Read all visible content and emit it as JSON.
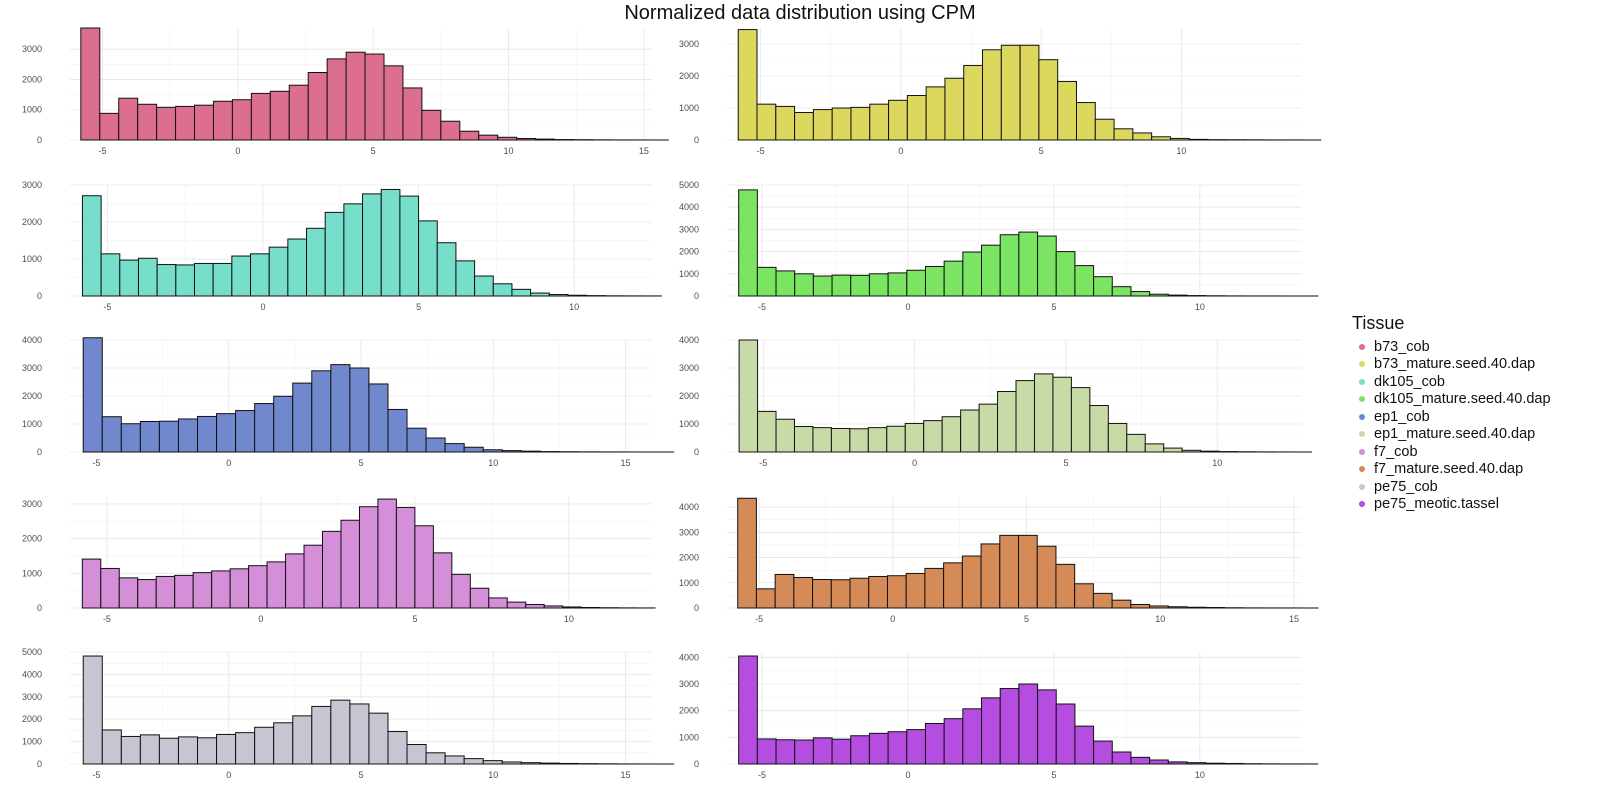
{
  "title": "Normalized data distribution using CPM",
  "legend": {
    "title": "Tissue",
    "position": "right",
    "items": [
      {
        "label": "b73_cob",
        "color": "#DC6E8E"
      },
      {
        "label": "b73_mature.seed.40.dap",
        "color": "#DCD85E"
      },
      {
        "label": "dk105_cob",
        "color": "#76DECB"
      },
      {
        "label": "dk105_mature.seed.40.dap",
        "color": "#7BE462"
      },
      {
        "label": "ep1_cob",
        "color": "#7188CF"
      },
      {
        "label": "ep1_mature.seed.40.dap",
        "color": "#C8DBA6"
      },
      {
        "label": "f7_cob",
        "color": "#D58ED8"
      },
      {
        "label": "f7_mature.seed.40.dap",
        "color": "#D48B57"
      },
      {
        "label": "pe75_cob",
        "color": "#C6C6D3"
      },
      {
        "label": "pe75_meotic.tassel",
        "color": "#B44DE0"
      }
    ]
  },
  "chart_data": [
    {
      "type": "histogram",
      "tissue": "b73_cob",
      "color": "#DC6E8E",
      "grid": true,
      "bin_start": -5.8,
      "bin_width": 0.7,
      "xlim": [
        -6.2,
        15.3
      ],
      "ylim": [
        0,
        3700
      ],
      "x_ticks": [
        -5,
        0,
        5,
        10,
        15
      ],
      "y_ticks": [
        0,
        1000,
        2000,
        3000
      ],
      "counts": [
        3700,
        880,
        1380,
        1180,
        1080,
        1110,
        1150,
        1280,
        1330,
        1540,
        1610,
        1810,
        2230,
        2680,
        2900,
        2840,
        2450,
        1720,
        980,
        620,
        290,
        160,
        90,
        50,
        30,
        15,
        10,
        5,
        3,
        2,
        1
      ]
    },
    {
      "type": "histogram",
      "tissue": "b73_mature.seed.40.dap",
      "color": "#DCD85E",
      "grid": true,
      "bin_start": -5.8,
      "bin_width": 0.67,
      "xlim": [
        -6.2,
        14.3
      ],
      "ylim": [
        0,
        3500
      ],
      "x_ticks": [
        -5,
        0,
        5,
        10
      ],
      "y_ticks": [
        0,
        1000,
        2000,
        3000
      ],
      "counts": [
        3450,
        1120,
        1050,
        860,
        950,
        1000,
        1020,
        1120,
        1240,
        1390,
        1660,
        1930,
        2330,
        2820,
        2960,
        2960,
        2510,
        1830,
        1170,
        650,
        350,
        220,
        100,
        50,
        20,
        10,
        8,
        5,
        3,
        2,
        1
      ]
    },
    {
      "type": "histogram",
      "tissue": "dk105_cob",
      "color": "#76DECB",
      "grid": true,
      "bin_start": -5.8,
      "bin_width": 0.6,
      "xlim": [
        -6.2,
        12.5
      ],
      "ylim": [
        0,
        3000
      ],
      "x_ticks": [
        -5,
        0,
        5,
        10
      ],
      "y_ticks": [
        0,
        1000,
        2000,
        3000
      ],
      "counts": [
        2710,
        1140,
        970,
        1020,
        850,
        840,
        880,
        880,
        1080,
        1140,
        1320,
        1540,
        1830,
        2260,
        2490,
        2760,
        2880,
        2700,
        2030,
        1440,
        950,
        540,
        330,
        180,
        80,
        40,
        20,
        10,
        5,
        3,
        2
      ]
    },
    {
      "type": "histogram",
      "tissue": "dk105_mature.seed.40.dap",
      "color": "#7BE462",
      "grid": true,
      "bin_start": -5.8,
      "bin_width": 0.64,
      "xlim": [
        -6.2,
        13.5
      ],
      "ylim": [
        0,
        5000
      ],
      "x_ticks": [
        -5,
        0,
        5,
        10
      ],
      "y_ticks": [
        0,
        1000,
        2000,
        3000,
        4000,
        5000
      ],
      "counts": [
        4780,
        1290,
        1130,
        1000,
        900,
        940,
        930,
        1000,
        1040,
        1160,
        1330,
        1570,
        1980,
        2290,
        2760,
        2880,
        2700,
        2000,
        1370,
        870,
        420,
        200,
        80,
        40,
        20,
        10,
        5,
        3,
        2,
        1,
        1
      ]
    },
    {
      "type": "histogram",
      "tissue": "ep1_cob",
      "color": "#7188CF",
      "grid": true,
      "bin_start": -5.5,
      "bin_width": 0.72,
      "xlim": [
        -6.0,
        16.0
      ],
      "ylim": [
        0,
        4000
      ],
      "x_ticks": [
        -5,
        0,
        5,
        10,
        15
      ],
      "y_ticks": [
        0,
        1000,
        2000,
        3000,
        4000
      ],
      "counts": [
        4080,
        1260,
        1010,
        1090,
        1100,
        1180,
        1270,
        1370,
        1480,
        1730,
        1990,
        2460,
        2900,
        3120,
        3000,
        2430,
        1520,
        850,
        500,
        300,
        170,
        80,
        50,
        30,
        15,
        10,
        5,
        3,
        2,
        1,
        1
      ]
    },
    {
      "type": "histogram",
      "tissue": "ep1_mature.seed.40.dap",
      "color": "#C8DBA6",
      "grid": true,
      "bin_start": -5.8,
      "bin_width": 0.61,
      "xlim": [
        -6.2,
        12.8
      ],
      "ylim": [
        0,
        4000
      ],
      "x_ticks": [
        -5,
        0,
        5,
        10
      ],
      "y_ticks": [
        0,
        1000,
        2000,
        3000,
        4000
      ],
      "counts": [
        4000,
        1450,
        1170,
        910,
        870,
        840,
        830,
        870,
        920,
        1020,
        1120,
        1260,
        1500,
        1710,
        2160,
        2550,
        2790,
        2670,
        2300,
        1660,
        1020,
        630,
        290,
        140,
        60,
        30,
        15,
        8,
        4,
        2,
        1
      ]
    },
    {
      "type": "histogram",
      "tissue": "f7_cob",
      "color": "#D58ED8",
      "grid": true,
      "bin_start": -5.8,
      "bin_width": 0.6,
      "xlim": [
        -6.2,
        12.7
      ],
      "ylim": [
        0,
        3200
      ],
      "x_ticks": [
        -5,
        0,
        5,
        10
      ],
      "y_ticks": [
        0,
        1000,
        2000,
        3000
      ],
      "counts": [
        1410,
        1140,
        870,
        820,
        910,
        940,
        1020,
        1070,
        1130,
        1220,
        1330,
        1560,
        1810,
        2210,
        2530,
        2920,
        3140,
        2900,
        2370,
        1590,
        970,
        570,
        290,
        170,
        100,
        60,
        30,
        15,
        8,
        4,
        2
      ]
    },
    {
      "type": "histogram",
      "tissue": "f7_mature.seed.40.dap",
      "color": "#D48B57",
      "grid": true,
      "bin_start": -5.8,
      "bin_width": 0.7,
      "xlim": [
        -6.2,
        15.3
      ],
      "ylim": [
        0,
        4400
      ],
      "x_ticks": [
        -5,
        0,
        5,
        10,
        15
      ],
      "y_ticks": [
        0,
        1000,
        2000,
        3000,
        4000
      ],
      "counts": [
        4350,
        760,
        1330,
        1210,
        1130,
        1120,
        1180,
        1250,
        1280,
        1370,
        1570,
        1790,
        2060,
        2540,
        2880,
        2880,
        2450,
        1730,
        960,
        580,
        310,
        140,
        80,
        50,
        30,
        20,
        10,
        5,
        3,
        2,
        1
      ]
    },
    {
      "type": "histogram",
      "tissue": "pe75_cob",
      "color": "#C6C6D3",
      "grid": true,
      "bin_start": -5.5,
      "bin_width": 0.72,
      "xlim": [
        -6.0,
        16.0
      ],
      "ylim": [
        0,
        5000
      ],
      "x_ticks": [
        -5,
        0,
        5,
        10,
        15
      ],
      "y_ticks": [
        0,
        1000,
        2000,
        3000,
        4000,
        5000
      ],
      "counts": [
        4820,
        1520,
        1230,
        1300,
        1150,
        1210,
        1170,
        1320,
        1400,
        1640,
        1840,
        2150,
        2570,
        2850,
        2680,
        2270,
        1450,
        870,
        500,
        360,
        240,
        150,
        90,
        60,
        40,
        25,
        15,
        8,
        4,
        2,
        1
      ]
    },
    {
      "type": "histogram",
      "tissue": "pe75_meotic.tassel",
      "color": "#B44DE0",
      "grid": true,
      "bin_start": -5.8,
      "bin_width": 0.64,
      "xlim": [
        -6.2,
        13.5
      ],
      "ylim": [
        0,
        4200
      ],
      "x_ticks": [
        -5,
        0,
        5,
        10
      ],
      "y_ticks": [
        0,
        1000,
        2000,
        3000,
        4000
      ],
      "counts": [
        4050,
        940,
        910,
        900,
        980,
        930,
        1060,
        1150,
        1210,
        1290,
        1520,
        1700,
        2070,
        2480,
        2830,
        3000,
        2780,
        2250,
        1420,
        860,
        450,
        250,
        150,
        80,
        50,
        30,
        20,
        10,
        5,
        3,
        2
      ]
    }
  ]
}
